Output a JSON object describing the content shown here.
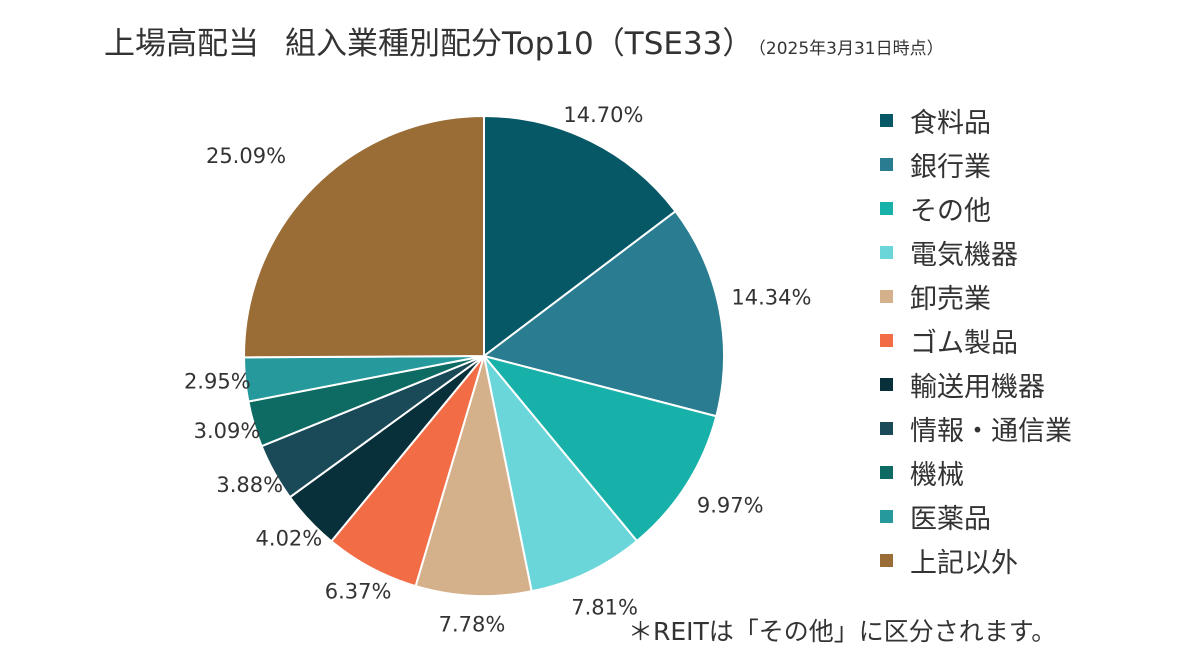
{
  "title": {
    "main": "上場高配当",
    "main2": "組入業種別配分Top10（TSE33）",
    "date": "（2025年3月31日時点）"
  },
  "chart_data": {
    "type": "pie",
    "start": "12 o'clock, clockwise",
    "slices": [
      {
        "label": "食料品",
        "value": 14.7,
        "display": "14.70%",
        "color": "#065866"
      },
      {
        "label": "銀行業",
        "value": 14.34,
        "display": "14.34%",
        "color": "#2a7d91"
      },
      {
        "label": "その他",
        "value": 9.97,
        "display": "9.97%",
        "color": "#18b1aa"
      },
      {
        "label": "電気機器",
        "value": 7.81,
        "display": "7.81%",
        "color": "#6ad6d9"
      },
      {
        "label": "卸売業",
        "value": 7.78,
        "display": "7.78%",
        "color": "#d4b18a"
      },
      {
        "label": "ゴム製品",
        "value": 6.37,
        "display": "6.37%",
        "color": "#f26d46"
      },
      {
        "label": "輸送用機器",
        "value": 4.02,
        "display": "4.02%",
        "color": "#08303b"
      },
      {
        "label": "情報・通信業",
        "value": 3.88,
        "display": "3.88%",
        "color": "#1a4a58"
      },
      {
        "label": "機械",
        "value": 3.09,
        "display": "3.09%",
        "color": "#0e6b64"
      },
      {
        "label": "医薬品",
        "value": 2.95,
        "display": "2.95%",
        "color": "#26999c"
      },
      {
        "label": "上記以外",
        "value": 25.09,
        "display": "25.09%",
        "color": "#9a6d36"
      }
    ]
  },
  "note": "＊REITは「その他」に区分されます。"
}
